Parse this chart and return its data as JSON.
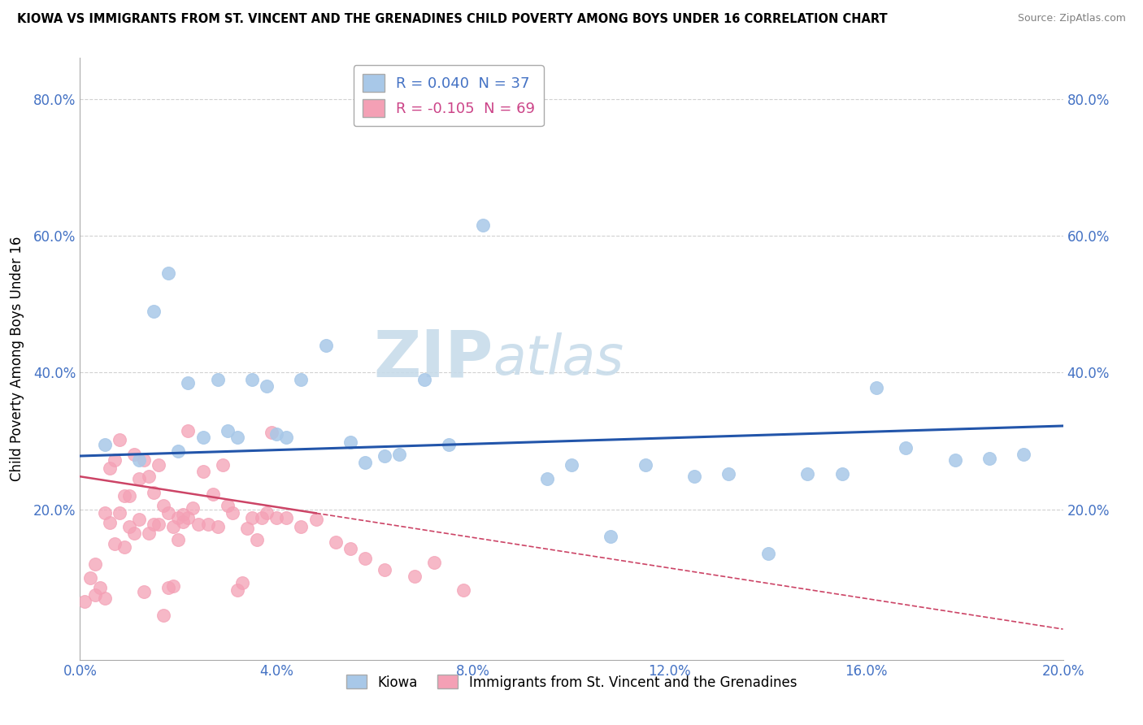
{
  "title": "KIOWA VS IMMIGRANTS FROM ST. VINCENT AND THE GRENADINES CHILD POVERTY AMONG BOYS UNDER 16 CORRELATION CHART",
  "source": "Source: ZipAtlas.com",
  "ylabel": "Child Poverty Among Boys Under 16",
  "xlabel": "",
  "xlim": [
    0.0,
    0.2
  ],
  "ylim": [
    -0.02,
    0.86
  ],
  "xticks": [
    0.0,
    0.04,
    0.08,
    0.12,
    0.16,
    0.2
  ],
  "yticks": [
    0.0,
    0.2,
    0.4,
    0.6,
    0.8
  ],
  "ytick_labels_left": [
    "",
    "20.0%",
    "40.0%",
    "60.0%",
    "80.0%"
  ],
  "ytick_labels_right": [
    "20.0%",
    "40.0%",
    "60.0%",
    "80.0%"
  ],
  "xtick_labels": [
    "0.0%",
    "4.0%",
    "8.0%",
    "12.0%",
    "16.0%",
    "20.0%"
  ],
  "legend1_R": "0.040",
  "legend1_N": "37",
  "legend2_R": "-0.105",
  "legend2_N": "69",
  "blue_color": "#a8c8e8",
  "pink_color": "#f4a0b5",
  "trendline_blue": "#2255aa",
  "trendline_pink": "#cc4466",
  "watermark_top": "ZIP",
  "watermark_bot": "atlas",
  "watermark_color": "#dde8f0",
  "blue_x": [
    0.005,
    0.012,
    0.015,
    0.018,
    0.02,
    0.022,
    0.025,
    0.028,
    0.03,
    0.032,
    0.035,
    0.038,
    0.04,
    0.042,
    0.045,
    0.05,
    0.055,
    0.058,
    0.062,
    0.065,
    0.07,
    0.075,
    0.082,
    0.095,
    0.1,
    0.108,
    0.115,
    0.125,
    0.132,
    0.14,
    0.148,
    0.155,
    0.162,
    0.168,
    0.178,
    0.185,
    0.192
  ],
  "blue_y": [
    0.295,
    0.272,
    0.49,
    0.545,
    0.285,
    0.385,
    0.305,
    0.39,
    0.315,
    0.305,
    0.39,
    0.38,
    0.31,
    0.305,
    0.39,
    0.44,
    0.298,
    0.268,
    0.278,
    0.28,
    0.39,
    0.295,
    0.615,
    0.245,
    0.265,
    0.16,
    0.265,
    0.248,
    0.252,
    0.135,
    0.252,
    0.252,
    0.378,
    0.29,
    0.272,
    0.275,
    0.28
  ],
  "pink_x": [
    0.001,
    0.002,
    0.003,
    0.003,
    0.004,
    0.005,
    0.005,
    0.006,
    0.006,
    0.007,
    0.007,
    0.008,
    0.008,
    0.009,
    0.009,
    0.01,
    0.01,
    0.011,
    0.011,
    0.012,
    0.012,
    0.013,
    0.013,
    0.014,
    0.014,
    0.015,
    0.015,
    0.016,
    0.016,
    0.017,
    0.017,
    0.018,
    0.018,
    0.019,
    0.019,
    0.02,
    0.02,
    0.021,
    0.021,
    0.022,
    0.022,
    0.023,
    0.024,
    0.025,
    0.026,
    0.027,
    0.028,
    0.029,
    0.03,
    0.031,
    0.032,
    0.033,
    0.034,
    0.035,
    0.036,
    0.037,
    0.038,
    0.039,
    0.04,
    0.042,
    0.045,
    0.048,
    0.052,
    0.055,
    0.058,
    0.062,
    0.068,
    0.072,
    0.078
  ],
  "pink_y": [
    0.065,
    0.1,
    0.12,
    0.075,
    0.085,
    0.195,
    0.07,
    0.26,
    0.18,
    0.15,
    0.272,
    0.302,
    0.195,
    0.22,
    0.145,
    0.175,
    0.22,
    0.28,
    0.165,
    0.245,
    0.185,
    0.272,
    0.08,
    0.165,
    0.248,
    0.178,
    0.225,
    0.178,
    0.265,
    0.205,
    0.045,
    0.195,
    0.085,
    0.088,
    0.175,
    0.188,
    0.155,
    0.182,
    0.192,
    0.315,
    0.188,
    0.202,
    0.178,
    0.255,
    0.178,
    0.222,
    0.175,
    0.265,
    0.205,
    0.195,
    0.082,
    0.092,
    0.172,
    0.188,
    0.155,
    0.188,
    0.195,
    0.312,
    0.188,
    0.188,
    0.175,
    0.185,
    0.152,
    0.142,
    0.128,
    0.112,
    0.102,
    0.122,
    0.082
  ]
}
